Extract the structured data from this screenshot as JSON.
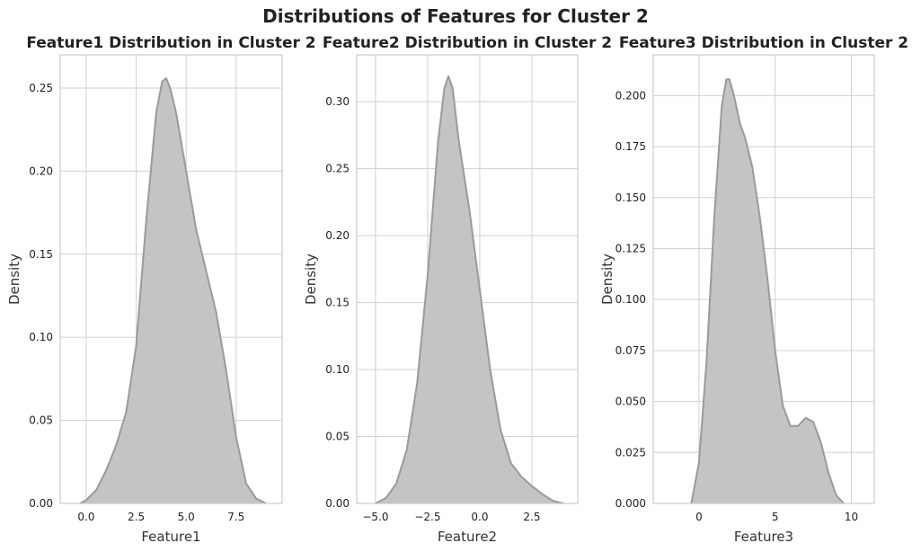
{
  "figure": {
    "title": "Distributions of Features for Cluster 2"
  },
  "chart_data": [
    {
      "type": "area",
      "title": "Feature1 Distribution in Cluster 2",
      "xlabel": "Feature1",
      "ylabel": "Density",
      "xlim": [
        -1.3,
        9.8
      ],
      "ylim": [
        0,
        0.27
      ],
      "xticks": [
        0.0,
        2.5,
        5.0,
        7.5
      ],
      "xtick_labels": [
        "0.0",
        "2.5",
        "5.0",
        "7.5"
      ],
      "yticks": [
        0.0,
        0.05,
        0.1,
        0.15,
        0.2,
        0.25
      ],
      "ytick_labels": [
        "0.00",
        "0.05",
        "0.10",
        "0.15",
        "0.20",
        "0.25"
      ],
      "grid": true,
      "fill_color": "#c4c4c4",
      "line_color": "#9a9a9a",
      "x": [
        -0.3,
        0.0,
        0.5,
        1.0,
        1.5,
        2.0,
        2.5,
        3.0,
        3.5,
        3.8,
        4.0,
        4.2,
        4.5,
        5.0,
        5.5,
        6.0,
        6.5,
        7.0,
        7.5,
        8.0,
        8.5,
        9.0
      ],
      "y": [
        0.0,
        0.002,
        0.008,
        0.02,
        0.035,
        0.055,
        0.095,
        0.17,
        0.235,
        0.254,
        0.256,
        0.25,
        0.235,
        0.2,
        0.165,
        0.14,
        0.115,
        0.08,
        0.04,
        0.012,
        0.003,
        0.0
      ]
    },
    {
      "type": "area",
      "title": "Feature2 Distribution in Cluster 2",
      "xlabel": "Feature2",
      "ylabel": "Density",
      "xlim": [
        -5.9,
        4.7
      ],
      "ylim": [
        0,
        0.335
      ],
      "xticks": [
        -5.0,
        -2.5,
        0.0,
        2.5
      ],
      "xtick_labels": [
        "−5.0",
        "−2.5",
        "0.0",
        "2.5"
      ],
      "yticks": [
        0.0,
        0.05,
        0.1,
        0.15,
        0.2,
        0.25,
        0.3
      ],
      "ytick_labels": [
        "0.00",
        "0.05",
        "0.10",
        "0.15",
        "0.20",
        "0.25",
        "0.30"
      ],
      "grid": true,
      "fill_color": "#c4c4c4",
      "line_color": "#9a9a9a",
      "x": [
        -5.0,
        -4.5,
        -4.0,
        -3.5,
        -3.0,
        -2.5,
        -2.0,
        -1.7,
        -1.5,
        -1.3,
        -1.0,
        -0.5,
        0.0,
        0.5,
        1.0,
        1.5,
        2.0,
        2.5,
        3.0,
        3.5,
        4.0
      ],
      "y": [
        0.0,
        0.004,
        0.015,
        0.04,
        0.09,
        0.17,
        0.27,
        0.31,
        0.319,
        0.31,
        0.27,
        0.22,
        0.16,
        0.1,
        0.055,
        0.03,
        0.02,
        0.013,
        0.007,
        0.002,
        0.0
      ]
    },
    {
      "type": "area",
      "title": "Feature3 Distribution in Cluster 2",
      "xlabel": "Feature3",
      "ylabel": "Density",
      "xlim": [
        -3.0,
        11.5
      ],
      "ylim": [
        0,
        0.22
      ],
      "xticks": [
        0,
        5,
        10
      ],
      "xtick_labels": [
        "0",
        "5",
        "10"
      ],
      "yticks": [
        0.0,
        0.025,
        0.05,
        0.075,
        0.1,
        0.125,
        0.15,
        0.175,
        0.2
      ],
      "ytick_labels": [
        "0.000",
        "0.025",
        "0.050",
        "0.075",
        "0.100",
        "0.125",
        "0.150",
        "0.175",
        "0.200"
      ],
      "grid": true,
      "fill_color": "#c4c4c4",
      "line_color": "#9a9a9a",
      "x": [
        -0.5,
        0.0,
        0.5,
        1.0,
        1.5,
        1.8,
        2.0,
        2.3,
        2.7,
        3.0,
        3.5,
        4.0,
        4.5,
        5.0,
        5.5,
        6.0,
        6.5,
        7.0,
        7.5,
        8.0,
        8.5,
        9.0,
        9.5
      ],
      "y": [
        0.0,
        0.02,
        0.07,
        0.14,
        0.195,
        0.208,
        0.208,
        0.2,
        0.186,
        0.18,
        0.165,
        0.14,
        0.11,
        0.075,
        0.048,
        0.038,
        0.038,
        0.042,
        0.04,
        0.03,
        0.015,
        0.004,
        0.0
      ]
    }
  ]
}
